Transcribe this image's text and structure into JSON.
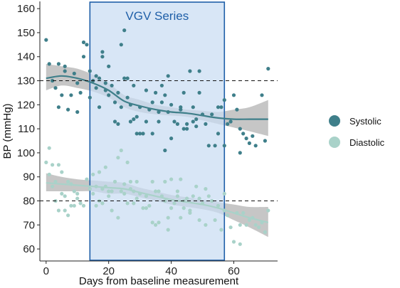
{
  "chart_data": {
    "type": "scatter",
    "xlabel": "Days from baseline measurement",
    "ylabel": "BP (mmHg)",
    "xlim": [
      -2,
      74
    ],
    "ylim": [
      55,
      163
    ],
    "x_ticks": [
      0,
      20,
      40,
      60
    ],
    "y_ticks": [
      60,
      70,
      80,
      90,
      100,
      110,
      120,
      130,
      140,
      150,
      160
    ],
    "grid": false,
    "legend_position": "right",
    "reference_lines": [
      130,
      80
    ],
    "shaded_region": {
      "label": "VGV Series",
      "x_start": 14,
      "x_end": 57,
      "color": "#c9dcf2",
      "border": "#1f5fa8"
    },
    "series": [
      {
        "name": "Systolic",
        "color": "#3f7f8a",
        "points": [
          [
            0,
            147
          ],
          [
            1,
            137
          ],
          [
            2,
            130
          ],
          [
            3,
            127
          ],
          [
            4,
            119
          ],
          [
            4,
            137
          ],
          [
            5,
            124
          ],
          [
            6,
            136
          ],
          [
            6,
            134
          ],
          [
            7,
            118
          ],
          [
            8,
            124
          ],
          [
            9,
            133
          ],
          [
            10,
            129
          ],
          [
            10,
            117
          ],
          [
            11,
            125
          ],
          [
            12,
            140
          ],
          [
            12,
            146
          ],
          [
            13,
            145
          ],
          [
            14,
            134
          ],
          [
            14,
            123
          ],
          [
            15,
            130
          ],
          [
            16,
            132
          ],
          [
            16,
            127
          ],
          [
            17,
            131
          ],
          [
            17,
            119
          ],
          [
            18,
            140
          ],
          [
            18,
            142
          ],
          [
            19,
            129
          ],
          [
            19,
            126
          ],
          [
            20,
            136
          ],
          [
            20,
            124
          ],
          [
            21,
            128
          ],
          [
            22,
            113
          ],
          [
            22,
            121
          ],
          [
            23,
            125
          ],
          [
            23,
            112
          ],
          [
            24,
            145
          ],
          [
            24,
            119
          ],
          [
            25,
            131
          ],
          [
            25,
            151
          ],
          [
            26,
            131
          ],
          [
            26,
            123
          ],
          [
            27,
            120
          ],
          [
            27,
            113
          ],
          [
            28,
            114
          ],
          [
            28,
            128
          ],
          [
            29,
            115
          ],
          [
            29,
            108
          ],
          [
            30,
            108
          ],
          [
            30,
            119
          ],
          [
            31,
            108
          ],
          [
            32,
            113
          ],
          [
            32,
            126
          ],
          [
            33,
            118
          ],
          [
            34,
            121
          ],
          [
            34,
            108
          ],
          [
            35,
            125
          ],
          [
            36,
            117
          ],
          [
            36,
            113
          ],
          [
            37,
            128
          ],
          [
            37,
            121
          ],
          [
            38,
            124
          ],
          [
            38,
            101
          ],
          [
            39,
            117
          ],
          [
            39,
            132
          ],
          [
            40,
            120
          ],
          [
            40,
            106
          ],
          [
            41,
            113
          ],
          [
            42,
            112
          ],
          [
            43,
            118
          ],
          [
            43,
            119
          ],
          [
            44,
            110
          ],
          [
            44,
            125
          ],
          [
            45,
            112
          ],
          [
            45,
            110
          ],
          [
            46,
            134
          ],
          [
            47,
            113
          ],
          [
            47,
            119
          ],
          [
            48,
            114
          ],
          [
            48,
            111
          ],
          [
            49,
            125
          ],
          [
            49,
            134
          ],
          [
            50,
            116
          ],
          [
            51,
            112
          ],
          [
            52,
            103
          ],
          [
            53,
            116
          ],
          [
            54,
            103
          ],
          [
            55,
            119
          ],
          [
            55,
            108
          ],
          [
            56,
            119
          ],
          [
            57,
            103
          ],
          [
            57,
            122
          ],
          [
            58,
            112
          ],
          [
            59,
            113
          ],
          [
            60,
            124
          ],
          [
            61,
            118
          ],
          [
            62,
            110
          ],
          [
            62,
            100
          ],
          [
            63,
            108
          ],
          [
            64,
            106
          ],
          [
            65,
            104
          ],
          [
            66,
            107
          ],
          [
            67,
            103
          ],
          [
            69,
            124
          ],
          [
            70,
            105
          ],
          [
            71,
            135
          ]
        ],
        "trend": [
          [
            0,
            131
          ],
          [
            5,
            132
          ],
          [
            10,
            131
          ],
          [
            15,
            129
          ],
          [
            20,
            126
          ],
          [
            25,
            121.5
          ],
          [
            30,
            119.5
          ],
          [
            35,
            118
          ],
          [
            40,
            117
          ],
          [
            45,
            116.5
          ],
          [
            50,
            115.5
          ],
          [
            55,
            114.5
          ],
          [
            60,
            114
          ],
          [
            65,
            114
          ],
          [
            71,
            114
          ]
        ],
        "ci_band": [
          [
            0,
            126,
            137
          ],
          [
            5,
            128,
            136
          ],
          [
            10,
            127,
            135
          ],
          [
            15,
            125.5,
            132.5
          ],
          [
            20,
            123,
            129
          ],
          [
            25,
            119,
            124
          ],
          [
            30,
            117,
            122
          ],
          [
            35,
            116,
            120
          ],
          [
            40,
            115.5,
            119
          ],
          [
            45,
            115,
            118
          ],
          [
            50,
            113.5,
            117.5
          ],
          [
            55,
            112,
            117
          ],
          [
            60,
            110.5,
            118
          ],
          [
            65,
            109,
            119
          ],
          [
            71,
            107,
            122
          ]
        ]
      },
      {
        "name": "Diastolic",
        "color": "#a9d2c9",
        "points": [
          [
            0,
            96
          ],
          [
            1,
            102
          ],
          [
            1,
            91
          ],
          [
            2,
            86
          ],
          [
            2,
            95
          ],
          [
            3,
            88
          ],
          [
            3,
            80
          ],
          [
            4,
            95
          ],
          [
            4,
            76
          ],
          [
            5,
            92
          ],
          [
            5,
            83
          ],
          [
            6,
            82
          ],
          [
            6,
            76
          ],
          [
            7,
            88
          ],
          [
            7,
            74
          ],
          [
            8,
            87
          ],
          [
            8,
            78
          ],
          [
            9,
            78
          ],
          [
            9,
            84
          ],
          [
            10,
            83
          ],
          [
            10,
            81
          ],
          [
            11,
            79
          ],
          [
            12,
            78
          ],
          [
            13,
            89
          ],
          [
            14,
            85
          ],
          [
            15,
            83
          ],
          [
            15,
            91
          ],
          [
            16,
            86
          ],
          [
            16,
            78
          ],
          [
            17,
            80
          ],
          [
            17,
            92
          ],
          [
            18,
            85
          ],
          [
            18,
            79
          ],
          [
            19,
            86
          ],
          [
            19,
            94
          ],
          [
            20,
            84
          ],
          [
            20,
            82
          ],
          [
            21,
            84
          ],
          [
            21,
            76
          ],
          [
            22,
            88
          ],
          [
            23,
            73
          ],
          [
            23,
            98
          ],
          [
            24,
            84
          ],
          [
            24,
            101
          ],
          [
            25,
            87
          ],
          [
            25,
            83
          ],
          [
            26,
            79
          ],
          [
            26,
            96
          ],
          [
            27,
            88
          ],
          [
            27,
            85
          ],
          [
            28,
            84
          ],
          [
            28,
            79
          ],
          [
            29,
            81
          ],
          [
            29,
            88
          ],
          [
            30,
            83
          ],
          [
            31,
            77
          ],
          [
            32,
            82
          ],
          [
            32,
            77
          ],
          [
            33,
            78
          ],
          [
            34,
            71
          ],
          [
            34,
            88
          ],
          [
            35,
            70
          ],
          [
            35,
            84
          ],
          [
            36,
            84
          ],
          [
            36,
            71
          ],
          [
            37,
            82
          ],
          [
            38,
            88
          ],
          [
            38,
            80
          ],
          [
            39,
            68
          ],
          [
            39,
            73
          ],
          [
            40,
            89
          ],
          [
            40,
            77
          ],
          [
            41,
            79
          ],
          [
            42,
            82
          ],
          [
            42,
            84
          ],
          [
            43,
            89
          ],
          [
            43,
            73
          ],
          [
            44,
            80
          ],
          [
            44,
            77
          ],
          [
            45,
            81
          ],
          [
            46,
            76
          ],
          [
            46,
            75
          ],
          [
            47,
            82
          ],
          [
            48,
            86
          ],
          [
            49,
            81
          ],
          [
            49,
            72
          ],
          [
            50,
            79
          ],
          [
            51,
            70
          ],
          [
            51,
            85
          ],
          [
            52,
            82
          ],
          [
            53,
            80
          ],
          [
            54,
            72
          ],
          [
            55,
            78
          ],
          [
            56,
            68
          ],
          [
            57,
            83
          ],
          [
            57,
            76
          ],
          [
            58,
            74
          ],
          [
            59,
            69
          ],
          [
            60,
            63
          ],
          [
            61,
            75
          ],
          [
            62,
            70
          ],
          [
            62,
            62
          ],
          [
            63,
            75
          ],
          [
            64,
            70
          ],
          [
            65,
            72
          ],
          [
            66,
            73
          ],
          [
            67,
            70
          ],
          [
            68,
            69
          ],
          [
            69,
            71
          ],
          [
            70,
            67
          ],
          [
            71,
            76
          ]
        ],
        "trend": [
          [
            0,
            87.5
          ],
          [
            5,
            87
          ],
          [
            10,
            86.5
          ],
          [
            15,
            86
          ],
          [
            20,
            85.5
          ],
          [
            25,
            85
          ],
          [
            30,
            83.5
          ],
          [
            35,
            82
          ],
          [
            40,
            80.5
          ],
          [
            45,
            79.5
          ],
          [
            50,
            78.5
          ],
          [
            55,
            77
          ],
          [
            60,
            75
          ],
          [
            65,
            73
          ],
          [
            71,
            71
          ]
        ],
        "ci_band": [
          [
            0,
            84,
            91.5
          ],
          [
            5,
            84,
            90
          ],
          [
            10,
            84,
            89
          ],
          [
            15,
            84,
            88.5
          ],
          [
            20,
            83,
            88
          ],
          [
            25,
            83,
            87.5
          ],
          [
            30,
            81.5,
            85.5
          ],
          [
            35,
            80,
            84
          ],
          [
            40,
            78.5,
            82.5
          ],
          [
            45,
            77.5,
            81.5
          ],
          [
            50,
            76.5,
            80.5
          ],
          [
            55,
            75,
            79.5
          ],
          [
            60,
            72,
            78.5
          ],
          [
            65,
            69,
            77.5
          ],
          [
            71,
            65,
            77.5
          ]
        ]
      }
    ]
  }
}
